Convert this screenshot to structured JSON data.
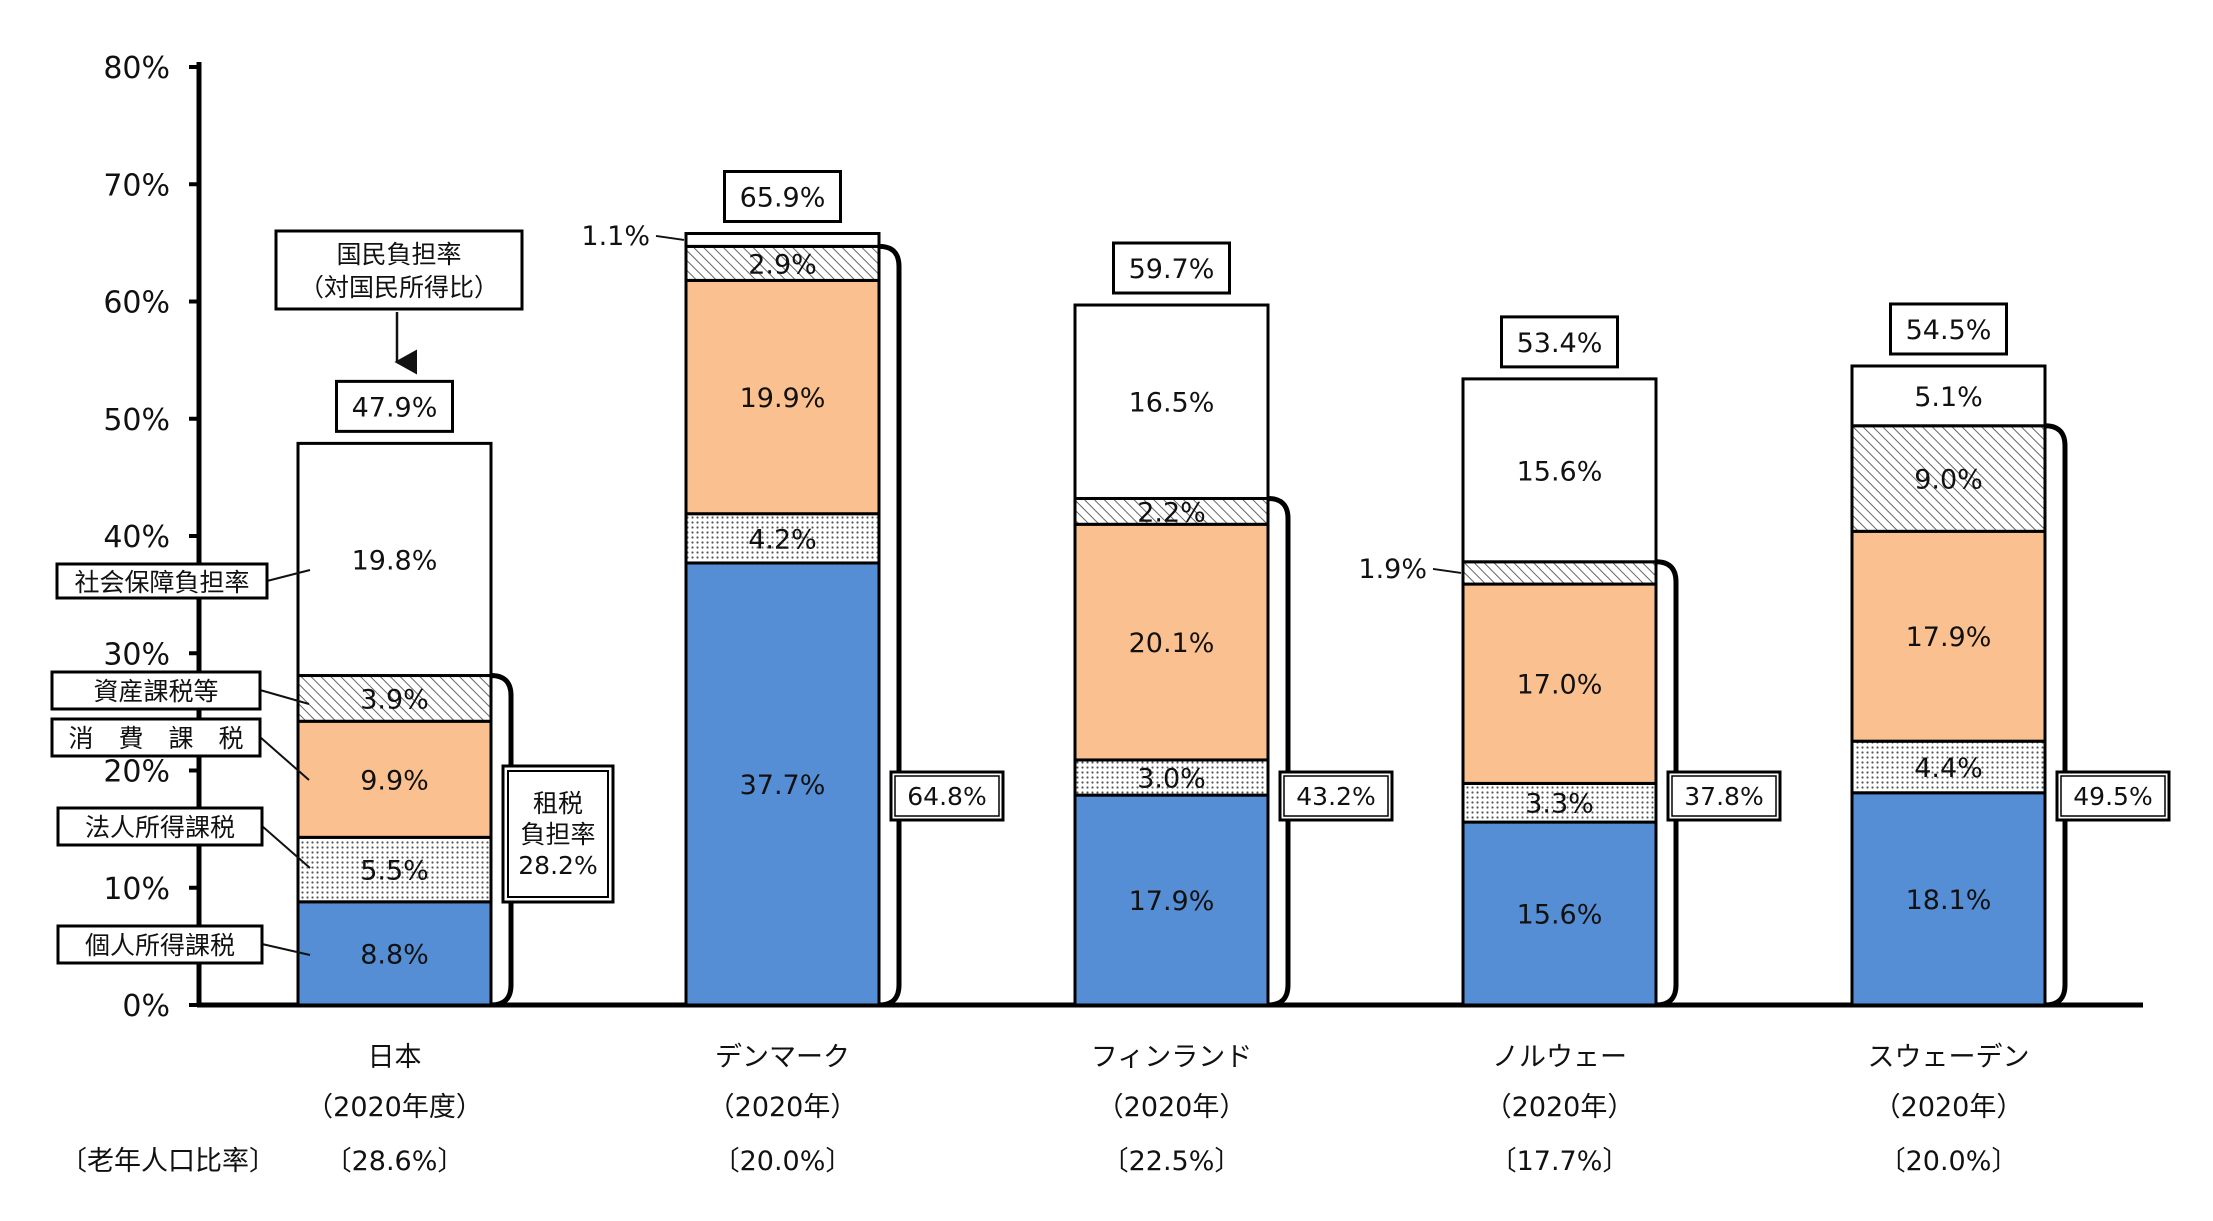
{
  "chart_data": {
    "type": "bar",
    "stacked": true,
    "ylim": [
      0,
      80
    ],
    "yticks": [
      "0%",
      "10%",
      "20%",
      "30%",
      "40%",
      "50%",
      "60%",
      "70%",
      "80%"
    ],
    "categories": [
      "日本",
      "デンマーク",
      "フィンランド",
      "ノルウェー",
      "スウェーデン"
    ],
    "category_years": [
      "（2020年度）",
      "（2020年）",
      "（2020年）",
      "（2020年）",
      "（2020年）"
    ],
    "elderly_ratio_label": "〔老年人口比率〕",
    "elderly_ratio": [
      "〔28.6%〕",
      "〔20.0%〕",
      "〔22.5%〕",
      "〔17.7%〕",
      "〔20.0%〕"
    ],
    "series": [
      {
        "name": "個人所得課税",
        "values": [
          8.8,
          37.7,
          17.9,
          15.6,
          18.1
        ],
        "color": "#558ed5",
        "fill": "solid"
      },
      {
        "name": "法人所得課税",
        "values": [
          5.5,
          4.2,
          3.0,
          3.3,
          4.4
        ],
        "color": "#ffffff",
        "fill": "dotted"
      },
      {
        "name": "消　費　課　税",
        "values": [
          9.9,
          19.9,
          20.1,
          17.0,
          17.9
        ],
        "color": "#fac090",
        "fill": "solid"
      },
      {
        "name": "資産課税等",
        "values": [
          3.9,
          2.9,
          2.2,
          1.9,
          9.0
        ],
        "color": "#ffffff",
        "fill": "hatched"
      },
      {
        "name": "社会保障負担率",
        "values": [
          19.8,
          1.1,
          16.5,
          15.6,
          5.1
        ],
        "color": "#ffffff",
        "fill": "solid"
      }
    ],
    "segment_labels": [
      [
        "8.8%",
        "5.5%",
        "9.9%",
        "3.9%",
        "19.8%"
      ],
      [
        "37.7%",
        "4.2%",
        "19.9%",
        "2.9%",
        "1.1%"
      ],
      [
        "17.9%",
        "3.0%",
        "20.1%",
        "2.2%",
        "16.5%"
      ],
      [
        "15.6%",
        "3.3%",
        "17.0%",
        "1.9%",
        "15.6%"
      ],
      [
        "18.1%",
        "4.4%",
        "17.9%",
        "9.0%",
        "5.1%"
      ]
    ],
    "totals": [
      "47.9%",
      "65.9%",
      "59.7%",
      "53.4%",
      "54.5%"
    ],
    "total_label": [
      "国民負担率",
      "（対国民所得比）"
    ],
    "tax_burden": [
      "28.2%",
      "64.8%",
      "43.2%",
      "37.8%",
      "49.5%"
    ],
    "tax_burden_label": [
      "租税",
      "負担率"
    ],
    "grid": false
  }
}
